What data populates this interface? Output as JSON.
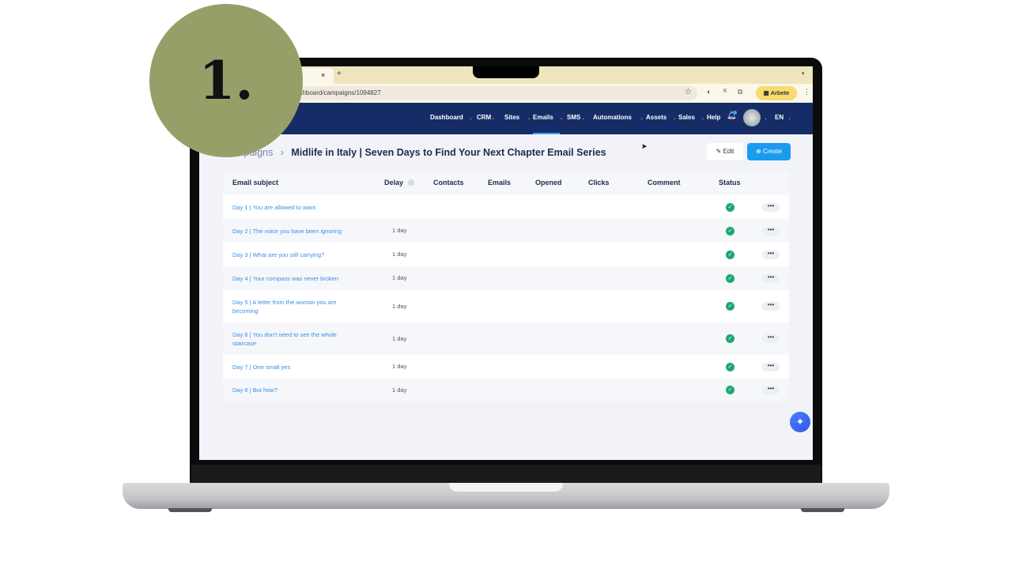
{
  "badge": "1.",
  "browser": {
    "url": "ashboard/campaigns/1094827",
    "profile": "Arbete",
    "tab_close": "×",
    "new_tab": "+"
  },
  "nav": {
    "items": [
      "Dashboard",
      "CRM",
      "Sites",
      "Emails",
      "SMS",
      "Automations",
      "Assets",
      "Sales"
    ],
    "help": "Help",
    "lang": "EN",
    "active": "Emails"
  },
  "page": {
    "breadcrumb": "Campaigns",
    "title": "Midlife in Italy | Seven Days to Find Your Next Chapter Email Series",
    "edit": "Edit",
    "create": "Create"
  },
  "table": {
    "headers": {
      "subject": "Email subject",
      "delay": "Delay",
      "contacts": "Contacts",
      "emails": "Emails",
      "opened": "Opened",
      "clicks": "Clicks",
      "comment": "Comment",
      "status": "Status"
    },
    "rows": [
      {
        "subject": "Day 1 | You are allowed to want",
        "delay": "",
        "status": "active"
      },
      {
        "subject": "Day 2 | The voice you have been ignoring",
        "delay": "1 day",
        "status": "active"
      },
      {
        "subject": "Day 3 | What are you still carrying?",
        "delay": "1 day",
        "status": "active"
      },
      {
        "subject": "Day 4 | Your compass was never broken",
        "delay": "1 day",
        "status": "active"
      },
      {
        "subject": "Day 5 | A letter from the woman you are becoming",
        "delay": "1 day",
        "status": "active"
      },
      {
        "subject": "Day 6 | You don't need to see the whole staircase",
        "delay": "1 day",
        "status": "active"
      },
      {
        "subject": "Day 7 | One small yes",
        "delay": "1 day",
        "status": "active"
      },
      {
        "subject": "Day 8 | But how?",
        "delay": "1 day",
        "status": "active"
      }
    ]
  },
  "colors": {
    "nav": "#152c66",
    "accent": "#1a9bf0",
    "status_ok": "#1ea672",
    "badge": "#979f69"
  }
}
